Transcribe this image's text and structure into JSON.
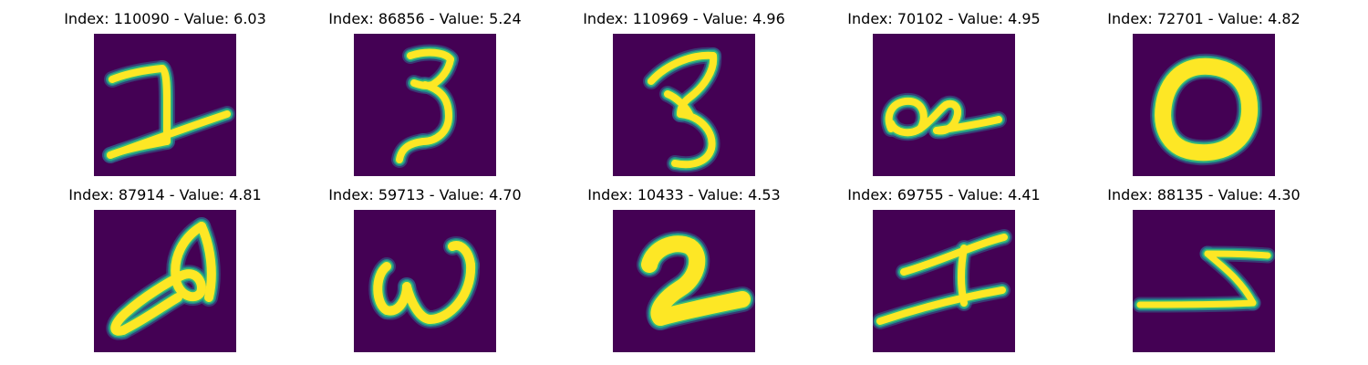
{
  "figure": {
    "background_color": "#440154",
    "stroke_colors": {
      "core": "#fde725",
      "edge": "#3bbb75",
      "outer": "#21918c",
      "halo": "#31688e"
    },
    "panels": [
      {
        "index": "110090",
        "value": "6.03",
        "title": "Index: 110090 - Value: 6.03",
        "glyph": "handwritten-digit-2"
      },
      {
        "index": "86856",
        "value": "5.24",
        "title": "Index: 86856 - Value: 5.24",
        "glyph": "handwritten-digit-3"
      },
      {
        "index": "110969",
        "value": "4.96",
        "title": "Index: 110969 - Value: 4.96",
        "glyph": "handwritten-digit-3"
      },
      {
        "index": "70102",
        "value": "4.95",
        "title": "Index: 70102 - Value: 4.95",
        "glyph": "handwritten-loop-squiggle"
      },
      {
        "index": "72701",
        "value": "4.82",
        "title": "Index: 72701 - Value: 4.82",
        "glyph": "handwritten-digit-0"
      },
      {
        "index": "87914",
        "value": "4.81",
        "title": "Index: 87914 - Value: 4.81",
        "glyph": "handwritten-looped-stroke"
      },
      {
        "index": "59713",
        "value": "4.70",
        "title": "Index: 59713 - Value: 4.70",
        "glyph": "handwritten-letter-w"
      },
      {
        "index": "10433",
        "value": "4.53",
        "title": "Index: 10433 - Value: 4.53",
        "glyph": "handwritten-digit-2"
      },
      {
        "index": "69755",
        "value": "4.41",
        "title": "Index: 69755 - Value: 4.41",
        "glyph": "handwritten-digit-1"
      },
      {
        "index": "88135",
        "value": "4.30",
        "title": "Index: 88135 - Value: 4.30",
        "glyph": "handwritten-zigzag"
      }
    ]
  }
}
